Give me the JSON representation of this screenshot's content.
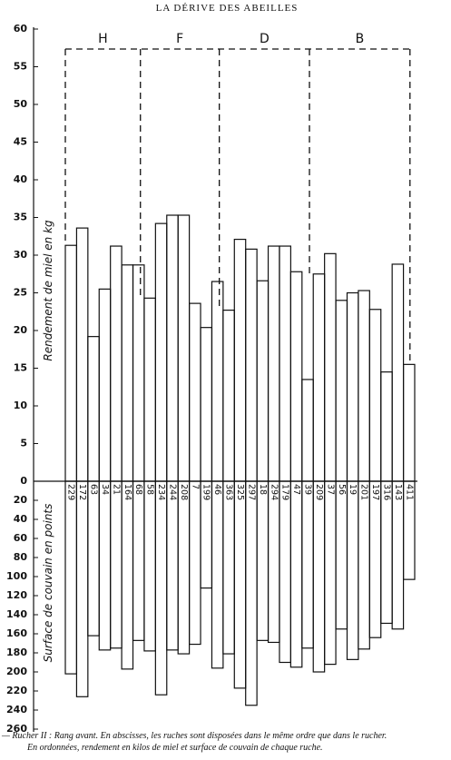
{
  "header": "LA DÉRIVE DES ABEILLES",
  "chart_data": [
    {
      "type": "bar",
      "ylabel": "Rendement de miel en kg",
      "groups": [
        "H",
        "F",
        "D",
        "B"
      ],
      "categories": [
        "229",
        "172",
        "63",
        "34",
        "21",
        "164",
        "68",
        "58",
        "234",
        "244",
        "208",
        "7",
        "199",
        "46",
        "363",
        "325",
        "297",
        "18",
        "294",
        "179",
        "47",
        "39",
        "209",
        "37",
        "56",
        "19",
        "201",
        "197",
        "316",
        "143",
        "411"
      ],
      "values": [
        31.3,
        33.6,
        19.2,
        25.5,
        31.2,
        28.7,
        28.7,
        24.3,
        34.2,
        35.3,
        35.3,
        23.6,
        20.4,
        26.5,
        22.7,
        32.1,
        30.8,
        26.6,
        31.2,
        31.2,
        27.8,
        13.5,
        27.5,
        30.2,
        24,
        25,
        25.3,
        22.8,
        14.5,
        28.8,
        15.5
      ],
      "ylim": [
        0,
        60
      ],
      "yticks": [
        0,
        5,
        10,
        15,
        20,
        25,
        30,
        35,
        40,
        45,
        50,
        55,
        60
      ]
    },
    {
      "type": "bar",
      "direction": "down",
      "ylabel": "Surface de couvain en points",
      "values": [
        202,
        226,
        162,
        177,
        175,
        197,
        167,
        178,
        224,
        177,
        181,
        171,
        112,
        196,
        181,
        217,
        235,
        167,
        169,
        190,
        195,
        175,
        200,
        192,
        155,
        187,
        176,
        164,
        149,
        155,
        103
      ],
      "ylim": [
        0,
        260
      ],
      "yticks": [
        20,
        40,
        60,
        80,
        100,
        120,
        140,
        160,
        180,
        200,
        220,
        240,
        260
      ]
    }
  ],
  "caption": [
    "— Rucher II : Rang avant. En abscisses, les ruches sont disposées dans le même ordre que dans le rucher.",
    "En ordonnées, rendement en kilos de miel et surface de couvain de chaque ruche."
  ]
}
